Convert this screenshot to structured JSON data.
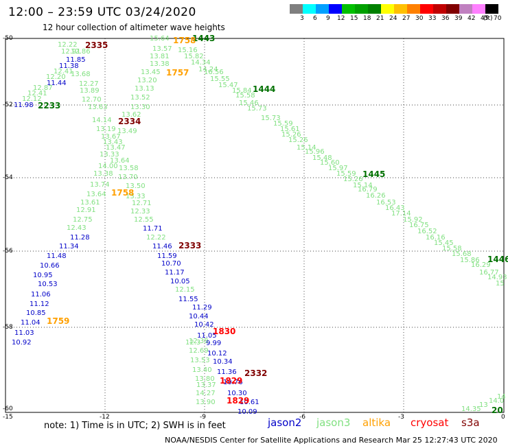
{
  "title": "12:00 – 23:59 UTC 03/24/2020",
  "subtitle": "12 hour collection of altimeter wave heights",
  "legend": {
    "colors": [
      "#7f7f7f",
      "#00ffff",
      "#00a0ff",
      "#0000ff",
      "#00c000",
      "#00a000",
      "#008000",
      "#ffff00",
      "#ffc000",
      "#ff8000",
      "#ff0000",
      "#c00000",
      "#800000",
      "#c080c0",
      "#ff80ff",
      "#000000"
    ],
    "labels": [
      "3",
      "6",
      "9",
      "12",
      "15",
      "18",
      "21",
      "24",
      "27",
      "30",
      "33",
      "36",
      "39",
      "42",
      "45",
      "70"
    ],
    "unit": "(ft)"
  },
  "axes": {
    "y_labels": [
      "-50",
      "-52",
      "-54",
      "-56",
      "-58",
      "-60"
    ],
    "x_labels": [
      "-15",
      "-12",
      "-9",
      "-6",
      "-3",
      "0"
    ]
  },
  "colors": {
    "jason2": "#0000c8",
    "jason3": "#80e080",
    "altika": "#ffa000",
    "cryosat": "#ff0000",
    "s3a": "#800000",
    "track_green": "#007000"
  },
  "points": [
    {
      "t": "12.22",
      "c": "jason3"
    },
    {
      "t": "12.91",
      "c": "jason3"
    },
    {
      "t": "11.85",
      "c": "jason2"
    },
    {
      "t": "11.38",
      "c": "jason2"
    },
    {
      "t": "12.86",
      "c": "jason3"
    },
    {
      "t": "12.41",
      "c": "jason3"
    },
    {
      "t": "12.20",
      "c": "jason3"
    },
    {
      "t": "11.44",
      "c": "jason2"
    },
    {
      "t": "12.87",
      "c": "jason3"
    },
    {
      "t": "12.41",
      "c": "jason3"
    },
    {
      "t": "12.12",
      "c": "jason3"
    },
    {
      "t": "11.98",
      "c": "jason2"
    },
    {
      "t": "13.68",
      "c": "jason3"
    },
    {
      "t": "12.27",
      "c": "jason3"
    },
    {
      "t": "13.89",
      "c": "jason3"
    },
    {
      "t": "12.70",
      "c": "jason3"
    },
    {
      "t": "13.63",
      "c": "jason3"
    },
    {
      "t": "15.64",
      "c": "jason3"
    },
    {
      "t": "13.57",
      "c": "jason3"
    },
    {
      "t": "13.81",
      "c": "jason3"
    },
    {
      "t": "13.38",
      "c": "jason3"
    },
    {
      "t": "13.45",
      "c": "jason3"
    },
    {
      "t": "13.20",
      "c": "jason3"
    },
    {
      "t": "13.13",
      "c": "jason3"
    },
    {
      "t": "13.52",
      "c": "jason3"
    },
    {
      "t": "13.30",
      "c": "jason3"
    },
    {
      "t": "13.62",
      "c": "jason3"
    },
    {
      "t": "14.14",
      "c": "jason3"
    },
    {
      "t": "13.19",
      "c": "jason3"
    },
    {
      "t": "13.49",
      "c": "jason3"
    },
    {
      "t": "13.67",
      "c": "jason3"
    },
    {
      "t": "13.43",
      "c": "jason3"
    },
    {
      "t": "13.47",
      "c": "jason3"
    },
    {
      "t": "13.33",
      "c": "jason3"
    },
    {
      "t": "13.64",
      "c": "jason3"
    },
    {
      "t": "14.00",
      "c": "jason3"
    },
    {
      "t": "13.58",
      "c": "jason3"
    },
    {
      "t": "13.38",
      "c": "jason3"
    },
    {
      "t": "13.70",
      "c": "jason3"
    },
    {
      "t": "13.74",
      "c": "jason3"
    },
    {
      "t": "13.50",
      "c": "jason3"
    },
    {
      "t": "13.64",
      "c": "jason3"
    },
    {
      "t": "13.33",
      "c": "jason3"
    },
    {
      "t": "13.61",
      "c": "jason3"
    },
    {
      "t": "12.71",
      "c": "jason3"
    },
    {
      "t": "12.91",
      "c": "jason3"
    },
    {
      "t": "12.33",
      "c": "jason3"
    },
    {
      "t": "12.75",
      "c": "jason3"
    },
    {
      "t": "12.55",
      "c": "jason3"
    },
    {
      "t": "12.43",
      "c": "jason3"
    },
    {
      "t": "11.71",
      "c": "jason2"
    },
    {
      "t": "11.28",
      "c": "jason2"
    },
    {
      "t": "12.22",
      "c": "jason3"
    },
    {
      "t": "11.34",
      "c": "jason2"
    },
    {
      "t": "11.46",
      "c": "jason2"
    },
    {
      "t": "11.48",
      "c": "jason2"
    },
    {
      "t": "11.59",
      "c": "jason2"
    },
    {
      "t": "10.66",
      "c": "jason2"
    },
    {
      "t": "10.70",
      "c": "jason2"
    },
    {
      "t": "10.95",
      "c": "jason2"
    },
    {
      "t": "11.17",
      "c": "jason2"
    },
    {
      "t": "10.53",
      "c": "jason2"
    },
    {
      "t": "10.05",
      "c": "jason2"
    },
    {
      "t": "11.06",
      "c": "jason2"
    },
    {
      "t": "12.15",
      "c": "jason3"
    },
    {
      "t": "11.12",
      "c": "jason2"
    },
    {
      "t": "11.55",
      "c": "jason2"
    },
    {
      "t": "10.85",
      "c": "jason2"
    },
    {
      "t": "11.29",
      "c": "jason2"
    },
    {
      "t": "11.04",
      "c": "jason2"
    },
    {
      "t": "10.44",
      "c": "jason2"
    },
    {
      "t": "11.03",
      "c": "jason2"
    },
    {
      "t": "10.42",
      "c": "jason2"
    },
    {
      "t": "10.92",
      "c": "jason2"
    },
    {
      "t": "11.05",
      "c": "jason2"
    },
    {
      "t": "12.3",
      "c": "jason3"
    },
    {
      "t": "12.38",
      "c": "jason3"
    },
    {
      "t": "9.99",
      "c": "jason2"
    },
    {
      "t": "12.69",
      "c": "jason3"
    },
    {
      "t": "10.12",
      "c": "jason2"
    },
    {
      "t": "13.53",
      "c": "jason3"
    },
    {
      "t": "10.34",
      "c": "jason2"
    },
    {
      "t": "13.40",
      "c": "jason3"
    },
    {
      "t": "11.36",
      "c": "jason2"
    },
    {
      "t": "13.80",
      "c": "jason3"
    },
    {
      "t": "10.76",
      "c": "jason2"
    },
    {
      "t": "13.37",
      "c": "jason3"
    },
    {
      "t": "14.27",
      "c": "jason3"
    },
    {
      "t": "10.30",
      "c": "jason2"
    },
    {
      "t": "13.90",
      "c": "jason3"
    },
    {
      "t": "10.61",
      "c": "jason2"
    },
    {
      "t": "10.09",
      "c": "jason2"
    },
    {
      "t": "15.16",
      "c": "jason3"
    },
    {
      "t": "15.82",
      "c": "jason3"
    },
    {
      "t": "14.34",
      "c": "jason3"
    },
    {
      "t": "14.24",
      "c": "jason3"
    },
    {
      "t": "16.56",
      "c": "jason3"
    },
    {
      "t": "15.55",
      "c": "jason3"
    },
    {
      "t": "15.47",
      "c": "jason3"
    },
    {
      "t": "15.84",
      "c": "jason3"
    },
    {
      "t": "15.58",
      "c": "jason3"
    },
    {
      "t": "15.46",
      "c": "jason3"
    },
    {
      "t": "15.73",
      "c": "jason3"
    },
    {
      "t": "15.73",
      "c": "jason3"
    },
    {
      "t": "15.59",
      "c": "jason3"
    },
    {
      "t": "15.61",
      "c": "jason3"
    },
    {
      "t": "15.26",
      "c": "jason3"
    },
    {
      "t": "15.26",
      "c": "jason3"
    },
    {
      "t": "15.14",
      "c": "jason3"
    },
    {
      "t": "15.96",
      "c": "jason3"
    },
    {
      "t": "15.48",
      "c": "jason3"
    },
    {
      "t": "15.60",
      "c": "jason3"
    },
    {
      "t": "15.97",
      "c": "jason3"
    },
    {
      "t": "15.59",
      "c": "jason3"
    },
    {
      "t": "15.26",
      "c": "jason3"
    },
    {
      "t": "15.14",
      "c": "jason3"
    },
    {
      "t": "16.79",
      "c": "jason3"
    },
    {
      "t": "16.26",
      "c": "jason3"
    },
    {
      "t": "16.53",
      "c": "jason3"
    },
    {
      "t": "16.43",
      "c": "jason3"
    },
    {
      "t": "17.14",
      "c": "jason3"
    },
    {
      "t": "15.92",
      "c": "jason3"
    },
    {
      "t": "16.75",
      "c": "jason3"
    },
    {
      "t": "16.52",
      "c": "jason3"
    },
    {
      "t": "16.16",
      "c": "jason3"
    },
    {
      "t": "15.45",
      "c": "jason3"
    },
    {
      "t": "15.58",
      "c": "jason3"
    },
    {
      "t": "15.68",
      "c": "jason3"
    },
    {
      "t": "15.86",
      "c": "jason3"
    },
    {
      "t": "16.29",
      "c": "jason3"
    },
    {
      "t": "16.77",
      "c": "jason3"
    },
    {
      "t": "14.93",
      "c": "jason3"
    },
    {
      "t": "15",
      "c": "jason3"
    },
    {
      "t": "14.35",
      "c": "jason3"
    },
    {
      "t": "13",
      "c": "jason3"
    },
    {
      "t": "14.0",
      "c": "jason3"
    },
    {
      "t": "14",
      "c": "jason3"
    }
  ],
  "tracks": [
    {
      "t": "2335",
      "c": "s3a"
    },
    {
      "t": "1443",
      "c": "track_green"
    },
    {
      "t": "1758",
      "c": "altika"
    },
    {
      "t": "1757",
      "c": "altika"
    },
    {
      "t": "2233",
      "c": "track_green"
    },
    {
      "t": "1444",
      "c": "track_green"
    },
    {
      "t": "2334",
      "c": "s3a"
    },
    {
      "t": "1445",
      "c": "track_green"
    },
    {
      "t": "1758",
      "c": "altika"
    },
    {
      "t": "2333",
      "c": "s3a"
    },
    {
      "t": "1446",
      "c": "track_green"
    },
    {
      "t": "1759",
      "c": "altika"
    },
    {
      "t": "1830",
      "c": "cryosat"
    },
    {
      "t": "2332",
      "c": "s3a"
    },
    {
      "t": "1829",
      "c": "cryosat"
    },
    {
      "t": "1829",
      "c": "cryosat"
    },
    {
      "t": "20",
      "c": "track_green"
    }
  ],
  "note": "note:  1) Time is in UTC;  2) SWH is in feet",
  "satellites": [
    {
      "name": "jason2",
      "c": "jason2"
    },
    {
      "name": "jason3",
      "c": "jason3"
    },
    {
      "name": "altika",
      "c": "altika"
    },
    {
      "name": "cryosat",
      "c": "cryosat"
    },
    {
      "name": "s3a",
      "c": "s3a"
    }
  ],
  "credit": "NOAA/NESDIS Center for Satellite Applications and Research    Mar 25 12:27:43 UTC 2020"
}
